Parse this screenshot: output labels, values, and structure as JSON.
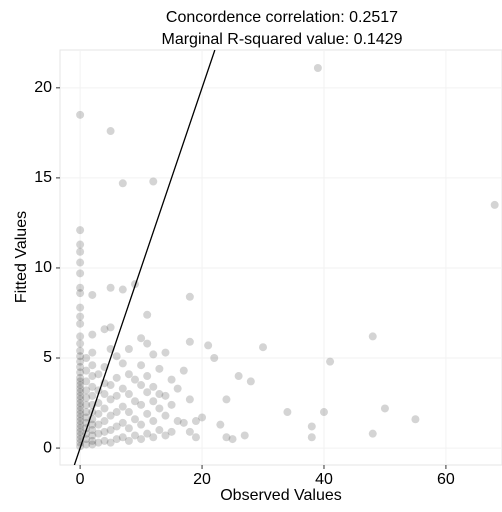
{
  "chart_data": {
    "type": "scatter",
    "title": [
      "Concordence correlation: 0.2517",
      "Marginal R-squared value: 0.1429"
    ],
    "x_label": "Observed Values",
    "y_label": "Fitted Values",
    "x": [
      0,
      0,
      0,
      0,
      0,
      0,
      0,
      0,
      0,
      0,
      0,
      0,
      0,
      0,
      0,
      0,
      0,
      0,
      0,
      0,
      0,
      0,
      0,
      0,
      0,
      0,
      0,
      0,
      0,
      0,
      0,
      0,
      0,
      0,
      0,
      0,
      0,
      0,
      1,
      1,
      1,
      1,
      1,
      1,
      1,
      1,
      1,
      1,
      1,
      1,
      1,
      2,
      2,
      2,
      2,
      2,
      2,
      2,
      2,
      2,
      2,
      2,
      2,
      2,
      2,
      2,
      3,
      3,
      3,
      3,
      3,
      3,
      3,
      4,
      4,
      4,
      4,
      4,
      4,
      4,
      4,
      5,
      5,
      5,
      5,
      5,
      5,
      5,
      5,
      5,
      6,
      6,
      6,
      6,
      6,
      6,
      7,
      7,
      7,
      7,
      7,
      7,
      7,
      8,
      8,
      8,
      8,
      8,
      8,
      9,
      9,
      9,
      9,
      9,
      10,
      10,
      10,
      10,
      10,
      10,
      11,
      11,
      11,
      11,
      11,
      11,
      12,
      12,
      12,
      12,
      12,
      12,
      13,
      13,
      13,
      13,
      14,
      14,
      14,
      14,
      15,
      15,
      15,
      16,
      16,
      17,
      17,
      18,
      18,
      18,
      18,
      19,
      19,
      20,
      21,
      22,
      23,
      24,
      24,
      25,
      26,
      27,
      28,
      30,
      34,
      38,
      38,
      39,
      40,
      41,
      48,
      48,
      50,
      55,
      68
    ],
    "values": [
      0.1,
      0.3,
      0.5,
      0.7,
      0.9,
      1.1,
      1.3,
      1.5,
      1.7,
      1.9,
      2.1,
      2.3,
      2.5,
      2.7,
      2.9,
      3.1,
      3.3,
      3.5,
      3.7,
      3.9,
      4.2,
      4.5,
      4.8,
      5.1,
      5.4,
      5.8,
      6.2,
      6.9,
      7.3,
      7.8,
      8.6,
      8.9,
      9.7,
      10.3,
      10.9,
      11.3,
      12.1,
      18.5,
      0.2,
      0.5,
      0.8,
      1.1,
      1.4,
      1.7,
      2.0,
      2.4,
      2.8,
      3.2,
      3.7,
      4.3,
      5.0,
      0.2,
      0.4,
      0.7,
      1.0,
      1.3,
      1.6,
      2.0,
      2.4,
      2.9,
      3.4,
      4.0,
      4.6,
      5.3,
      6.3,
      8.5,
      0.3,
      0.8,
      1.3,
      1.9,
      2.5,
      3.2,
      4.1,
      0.4,
      0.9,
      1.5,
      2.2,
      3.0,
      3.6,
      4.5,
      6.6,
      0.3,
      1.0,
      1.8,
      2.7,
      3.5,
      5.5,
      6.7,
      8.9,
      17.6,
      0.5,
      1.2,
      2.0,
      2.9,
      3.9,
      5.1,
      0.6,
      1.4,
      2.3,
      3.3,
      4.7,
      8.8,
      14.7,
      0.4,
      1.1,
      2.0,
      3.0,
      4.1,
      5.5,
      0.7,
      1.6,
      2.6,
      3.8,
      9.1,
      0.5,
      1.3,
      2.4,
      3.5,
      4.6,
      6.1,
      0.8,
      1.9,
      3.1,
      4.0,
      5.8,
      7.4,
      0.6,
      1.5,
      2.6,
      3.4,
      5.2,
      14.8,
      1.0,
      2.2,
      3.0,
      4.4,
      0.7,
      1.8,
      2.9,
      5.3,
      0.9,
      2.4,
      3.8,
      1.5,
      3.3,
      1.4,
      4.3,
      0.9,
      2.7,
      5.9,
      8.4,
      0.6,
      1.5,
      1.7,
      5.7,
      5.0,
      1.3,
      0.6,
      2.7,
      0.5,
      4.0,
      0.7,
      3.7,
      5.6,
      2.0,
      1.2,
      0.6,
      21.1,
      2.0,
      4.8,
      6.2,
      0.8,
      2.2,
      1.6,
      13.5
    ],
    "color": "#000000",
    "opacity": 0.17,
    "xlim": [
      -3.3,
      69.2
    ],
    "ylim": [
      -0.94,
      22.1
    ],
    "xticks": [
      0,
      20,
      40,
      60
    ],
    "yticks": [
      0,
      5,
      10,
      15,
      20
    ],
    "grid": true,
    "identity_line": true
  }
}
